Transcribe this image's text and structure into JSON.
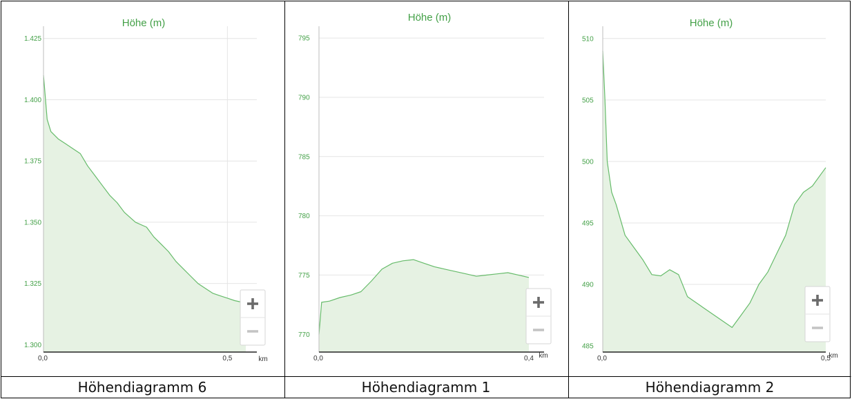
{
  "colors": {
    "line": "#66bb6a",
    "fill": "#e6f2e3",
    "grid": "#e4e4e4",
    "title": "#43a047",
    "axis": "#222222",
    "border": "#000000",
    "zoom_plus": "#6b6b6b",
    "zoom_minus": "#c4c4c4"
  },
  "zoom": {
    "plus_label": "+",
    "minus_label": "−",
    "plus_icon": "plus-icon",
    "minus_icon": "minus-icon"
  },
  "panels": [
    {
      "caption": "Höhendiagramm 6"
    },
    {
      "caption": "Höhendiagramm 1"
    },
    {
      "caption": "Höhendiagramm 2"
    }
  ],
  "chart_data": [
    {
      "type": "area",
      "title": "Höhe (m)",
      "ylabel": "Höhe (m)",
      "xlabel": "km",
      "xlim": [
        0,
        0.55
      ],
      "ylim": [
        1297,
        1430
      ],
      "xticks": [
        0,
        0.5
      ],
      "xtick_labels": [
        "0,0",
        "0,5"
      ],
      "yticks": [
        1300,
        1325,
        1350,
        1375,
        1400,
        1425
      ],
      "ytick_labels": [
        "1.300",
        "1.325",
        "1.350",
        "1.375",
        "1.400",
        "1.425"
      ],
      "vertical_grid_at": [
        0.5
      ],
      "grid": true,
      "x": [
        0,
        0.01,
        0.02,
        0.04,
        0.06,
        0.08,
        0.1,
        0.12,
        0.14,
        0.16,
        0.18,
        0.2,
        0.22,
        0.25,
        0.28,
        0.3,
        0.32,
        0.34,
        0.36,
        0.38,
        0.4,
        0.42,
        0.44,
        0.46,
        0.48,
        0.5,
        0.52,
        0.55
      ],
      "y": [
        1410,
        1392,
        1387,
        1384,
        1382,
        1380,
        1378,
        1373,
        1369,
        1365,
        1361,
        1358,
        1354,
        1350,
        1348,
        1344,
        1341,
        1338,
        1334,
        1331,
        1328,
        1325,
        1323,
        1321,
        1320,
        1319,
        1318,
        1317
      ]
    },
    {
      "type": "area",
      "title": "Höhe (m)",
      "ylabel": "Höhe (m)",
      "xlabel": "km",
      "xlim": [
        0,
        0.4
      ],
      "ylim": [
        768.5,
        796
      ],
      "xticks": [
        0,
        0.4
      ],
      "xtick_labels": [
        "0,0",
        "0,4"
      ],
      "yticks": [
        770,
        775,
        780,
        785,
        790,
        795
      ],
      "ytick_labels": [
        "770",
        "775",
        "780",
        "785",
        "790",
        "795"
      ],
      "vertical_grid_at": [],
      "grid": true,
      "x": [
        0,
        0.005,
        0.02,
        0.04,
        0.06,
        0.08,
        0.1,
        0.12,
        0.14,
        0.16,
        0.18,
        0.2,
        0.22,
        0.24,
        0.26,
        0.28,
        0.3,
        0.32,
        0.34,
        0.36,
        0.38,
        0.4
      ],
      "y": [
        770,
        772.7,
        772.8,
        773.1,
        773.3,
        773.6,
        774.5,
        775.5,
        776.0,
        776.2,
        776.3,
        776.0,
        775.7,
        775.5,
        775.3,
        775.1,
        774.9,
        775.0,
        775.1,
        775.2,
        775.0,
        774.8
      ]
    },
    {
      "type": "area",
      "title": "Höhe (m)",
      "ylabel": "Höhe (m)",
      "xlabel": "km",
      "xlim": [
        0,
        0.5
      ],
      "ylim": [
        484.5,
        511
      ],
      "xticks": [
        0,
        0.5
      ],
      "xtick_labels": [
        "0,0",
        "0,5"
      ],
      "yticks": [
        485,
        490,
        495,
        500,
        505,
        510
      ],
      "ytick_labels": [
        "485",
        "490",
        "495",
        "500",
        "505",
        "510"
      ],
      "vertical_grid_at": [],
      "grid": true,
      "x": [
        0,
        0.005,
        0.01,
        0.02,
        0.03,
        0.05,
        0.07,
        0.09,
        0.11,
        0.13,
        0.15,
        0.17,
        0.19,
        0.21,
        0.23,
        0.25,
        0.27,
        0.29,
        0.31,
        0.33,
        0.35,
        0.37,
        0.39,
        0.41,
        0.43,
        0.45,
        0.47,
        0.49,
        0.5
      ],
      "y": [
        509,
        505,
        500,
        497.5,
        496.5,
        494,
        493,
        492,
        490.8,
        490.7,
        491.2,
        490.8,
        489,
        488.5,
        488,
        487.5,
        487,
        486.5,
        487.5,
        488.5,
        490,
        491,
        492.5,
        494,
        496.5,
        497.5,
        498,
        499,
        499.5
      ]
    }
  ]
}
